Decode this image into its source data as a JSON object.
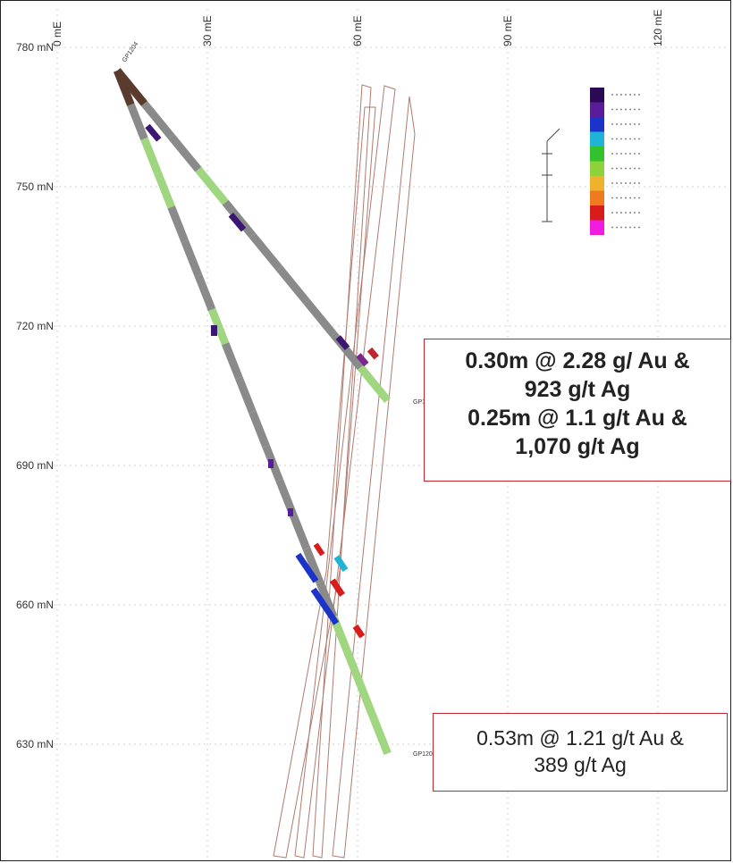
{
  "axes": {
    "x_ticks": [
      "0 mE",
      "30 mE",
      "60 mE",
      "90 mE",
      "120 mE"
    ],
    "y_ticks": [
      "780 mN",
      "750 mN",
      "720 mN",
      "690 mN",
      "660 mN",
      "630 mN"
    ]
  },
  "holes": [
    {
      "collar": [
        12,
        775
      ],
      "end": [
        66,
        704
      ],
      "colors": [
        "#2f3a44",
        "#8a8a8a"
      ]
    },
    {
      "collar": [
        12,
        775
      ],
      "end": [
        66,
        628
      ],
      "colors": [
        "#2f3a44",
        "#8a8a8a"
      ]
    }
  ],
  "legend": {
    "colors": [
      "#2a0a55",
      "#5a1d9a",
      "#1c33c9",
      "#1fb4d6",
      "#33c22e",
      "#8fd13b",
      "#f0b12e",
      "#f07b1e",
      "#d81c1c",
      "#f21ce0"
    ]
  },
  "callouts": [
    {
      "lines": [
        "0.30m @ 2.28 g/ Au &",
        "923 g/t Ag",
        "0.25m @ 1.1 g/t Au &",
        "1,070 g/t Ag"
      ]
    },
    {
      "lines": [
        "0.53m @ 1.21 g/t Au &",
        "389 g/t Ag"
      ]
    }
  ]
}
